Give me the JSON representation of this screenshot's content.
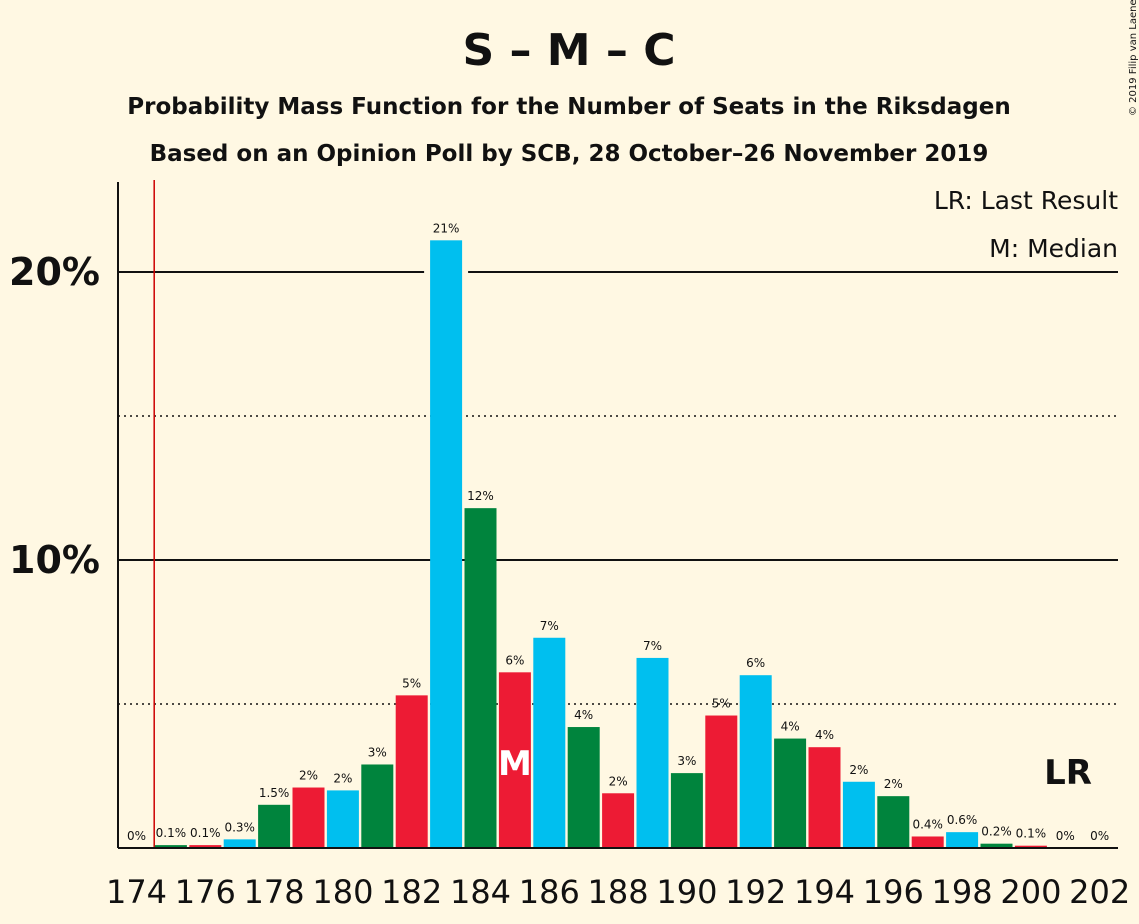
{
  "chart_data": {
    "type": "bar",
    "title": "S – M – C",
    "subtitle1": "Probability Mass Function for the Number of Seats in the Riksdagen",
    "subtitle2": "Based on an Opinion Poll by SCB, 28 October–26 November 2019",
    "copyright": "© 2019 Filip van Laenen",
    "legend": {
      "lr": "LR: Last Result",
      "median": "M: Median"
    },
    "median_marker": "M",
    "last_result_marker": "LR",
    "last_result_seat": 175,
    "median_seat": 185,
    "ylim": [
      0,
      23
    ],
    "yticks": [
      {
        "value": 10,
        "label": "10%"
      },
      {
        "value": 20,
        "label": "20%"
      }
    ],
    "dotted_gridlines": [
      5,
      15
    ],
    "xtick_labels": [
      "174",
      "176",
      "178",
      "180",
      "182",
      "184",
      "186",
      "188",
      "190",
      "192",
      "194",
      "196",
      "198",
      "200",
      "202"
    ],
    "seats": [
      174,
      175,
      176,
      177,
      178,
      179,
      180,
      181,
      182,
      183,
      184,
      185,
      186,
      187,
      188,
      189,
      190,
      191,
      192,
      193,
      194,
      195,
      196,
      197,
      198,
      199,
      200,
      201,
      202
    ],
    "values": [
      0,
      0.1,
      0.1,
      0.3,
      1.5,
      2.1,
      2.0,
      2.9,
      5.3,
      21.1,
      11.8,
      6.1,
      7.3,
      4.2,
      1.9,
      6.6,
      2.6,
      4.6,
      6.0,
      3.8,
      3.5,
      2.3,
      1.8,
      0.4,
      0.55,
      0.15,
      0.08,
      0.02,
      0.01
    ],
    "labels": [
      "0%",
      "0.1%",
      "0.1%",
      "0.3%",
      "1.5%",
      "2%",
      "2%",
      "3%",
      "5%",
      "21%",
      "12%",
      "6%",
      "7%",
      "4%",
      "2%",
      "7%",
      "3%",
      "5%",
      "6%",
      "4%",
      "4%",
      "2%",
      "2%",
      "0.4%",
      "0.6%",
      "0.2%",
      "0.1%",
      "0%",
      "0%"
    ],
    "colors": {
      "red": "#ED1B34",
      "blue": "#00BFEF",
      "green": "#00843D",
      "lr_line": "#CC0000",
      "background": "#FFF8E3"
    }
  }
}
